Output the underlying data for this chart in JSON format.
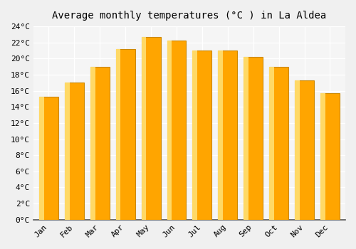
{
  "months": [
    "Jan",
    "Feb",
    "Mar",
    "Apr",
    "May",
    "Jun",
    "Jul",
    "Aug",
    "Sep",
    "Oct",
    "Nov",
    "Dec"
  ],
  "temperatures": [
    15.3,
    17.0,
    19.0,
    21.2,
    22.7,
    22.2,
    21.0,
    21.0,
    20.2,
    19.0,
    17.3,
    15.7
  ],
  "bar_color_main": "#FFA500",
  "bar_color_light": "#FFD966",
  "bar_edge_color": "#CC8800",
  "title": "Average monthly temperatures (°C ) in La Aldea",
  "ylim": [
    0,
    24
  ],
  "ytick_step": 2,
  "background_color": "#f0f0f0",
  "plot_bg_color": "#f5f5f5",
  "grid_color": "#ffffff",
  "title_fontsize": 10,
  "tick_fontsize": 8,
  "font_family": "monospace"
}
